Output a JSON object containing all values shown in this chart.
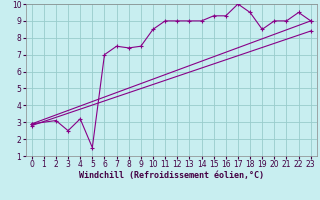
{
  "bg_color": "#c8eef0",
  "line_color": "#880088",
  "grid_color": "#99cccc",
  "xlabel": "Windchill (Refroidissement éolien,°C)",
  "xlim": [
    -0.5,
    23.5
  ],
  "ylim": [
    1,
    10
  ],
  "xticks": [
    0,
    1,
    2,
    3,
    4,
    5,
    6,
    7,
    8,
    9,
    10,
    11,
    12,
    13,
    14,
    15,
    16,
    17,
    18,
    19,
    20,
    21,
    22,
    23
  ],
  "yticks": [
    1,
    2,
    3,
    4,
    5,
    6,
    7,
    8,
    9,
    10
  ],
  "line1_x": [
    0,
    2,
    3,
    4,
    5,
    6,
    7,
    8,
    9,
    10,
    11,
    12,
    13,
    14,
    15,
    16,
    17,
    18,
    19,
    20,
    21,
    22,
    23
  ],
  "line1_y": [
    2.9,
    3.1,
    2.5,
    3.2,
    1.5,
    7.0,
    7.5,
    7.4,
    7.5,
    8.5,
    9.0,
    9.0,
    9.0,
    9.0,
    9.3,
    9.3,
    10.0,
    9.5,
    8.5,
    9.0,
    9.0,
    9.5,
    9.0
  ],
  "line2_x": [
    0,
    23
  ],
  "line2_y": [
    2.9,
    9.0
  ],
  "line3_x": [
    0,
    23
  ],
  "line3_y": [
    2.8,
    8.4
  ],
  "figsize": [
    3.2,
    2.0
  ],
  "dpi": 100,
  "tick_fontsize": 5.5,
  "xlabel_fontsize": 6.0
}
